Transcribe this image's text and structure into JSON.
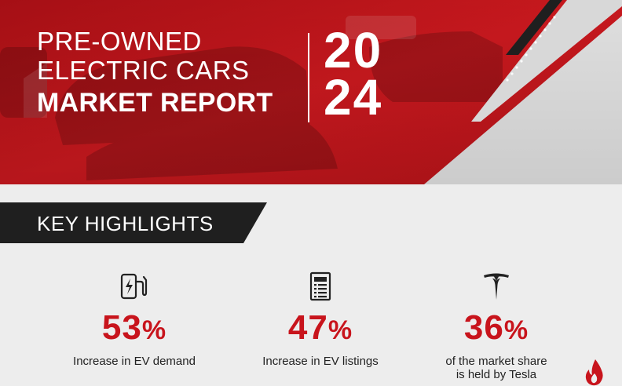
{
  "header": {
    "title_line1": "PRE-OWNED",
    "title_line2": "ELECTRIC CARS",
    "title_line3": "MARKET REPORT",
    "year_top": "20",
    "year_bottom": "24"
  },
  "highlights": {
    "title": "KEY HIGHLIGHTS",
    "stats": [
      {
        "value": "53",
        "unit": "%",
        "description": "Increase in EV demand",
        "icon": "ev-charger-icon"
      },
      {
        "value": "47",
        "unit": "%",
        "description": "Increase in EV listings",
        "icon": "listing-document-icon"
      },
      {
        "value": "36",
        "unit": "%",
        "description_line1": "of the market share",
        "description_line2": "is held by Tesla",
        "icon": "tesla-logo-icon"
      }
    ]
  },
  "colors": {
    "accent_red": "#c8141c",
    "dark": "#1f1f1f",
    "background": "#ededed",
    "text": "#222222"
  }
}
